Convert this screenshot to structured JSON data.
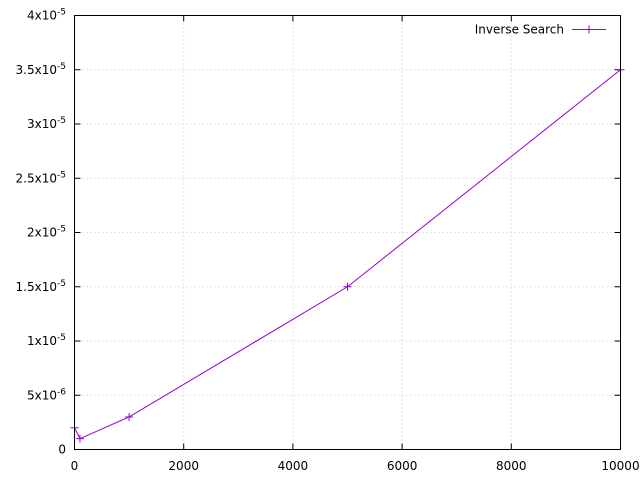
{
  "chart_data": {
    "type": "line",
    "title": "",
    "xlabel": "",
    "ylabel": "",
    "xlim": [
      0,
      10000
    ],
    "ylim": [
      0,
      4e-05
    ],
    "grid": true,
    "legend_position": "top-right",
    "x_ticks": [
      {
        "value": 0,
        "label": "0"
      },
      {
        "value": 2000,
        "label": "2000"
      },
      {
        "value": 4000,
        "label": "4000"
      },
      {
        "value": 6000,
        "label": "6000"
      },
      {
        "value": 8000,
        "label": "8000"
      },
      {
        "value": 10000,
        "label": "10000"
      }
    ],
    "y_ticks": [
      {
        "value": 0,
        "mantissa": "0",
        "exponent": ""
      },
      {
        "value": 5e-06,
        "mantissa": "5x10",
        "exponent": "-6"
      },
      {
        "value": 1e-05,
        "mantissa": "1x10",
        "exponent": "-5"
      },
      {
        "value": 1.5e-05,
        "mantissa": "1.5x10",
        "exponent": "-5"
      },
      {
        "value": 2e-05,
        "mantissa": "2x10",
        "exponent": "-5"
      },
      {
        "value": 2.5e-05,
        "mantissa": "2.5x10",
        "exponent": "-5"
      },
      {
        "value": 3e-05,
        "mantissa": "3x10",
        "exponent": "-5"
      },
      {
        "value": 3.5e-05,
        "mantissa": "3.5x10",
        "exponent": "-5"
      },
      {
        "value": 4e-05,
        "mantissa": "4x10",
        "exponent": "-5"
      }
    ],
    "series": [
      {
        "name": "Inverse Search",
        "color": "#9400d3",
        "marker": "plus",
        "points": [
          {
            "x": 0,
            "y": 2e-06
          },
          {
            "x": 100,
            "y": 1e-06
          },
          {
            "x": 1000,
            "y": 3e-06
          },
          {
            "x": 5000,
            "y": 1.5e-05
          },
          {
            "x": 10000,
            "y": 3.5e-05
          }
        ]
      }
    ]
  }
}
